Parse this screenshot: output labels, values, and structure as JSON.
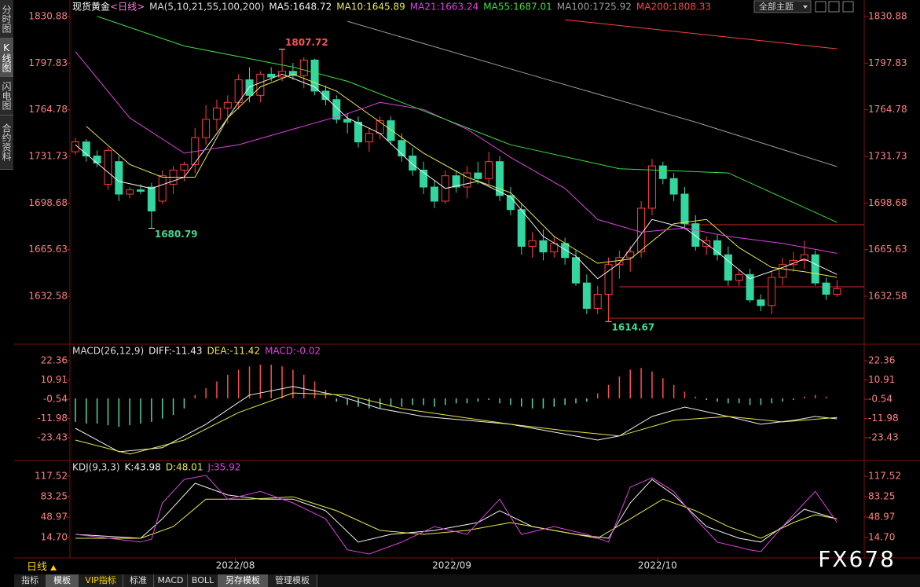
{
  "ui": {
    "sidebar": [
      "分时图",
      "K线图",
      "闪电图",
      "合约资料"
    ],
    "theme_button": "全部主题",
    "period": "日线",
    "tabs": [
      "指标",
      "模板",
      "VIP指标",
      "标准",
      "MACD",
      "BOLL",
      "另存模板",
      "管理模板"
    ],
    "watermark": "FX678"
  },
  "chart_data": [
    {
      "type": "candlestick",
      "title": "现货黄金",
      "period": "<日线>",
      "indicator": "MA(5,10,21,55,100,200)",
      "xlim": [
        -0.5,
        72.5
      ],
      "ylim": [
        1599.18,
        1830.88
      ],
      "yticks": [
        1830.88,
        1797.83,
        1764.78,
        1731.73,
        1698.68,
        1665.63,
        1632.58
      ],
      "up_color": "#ff3c3c",
      "down_color": "#33d6a0",
      "candles": [
        [
          1735,
          1745,
          1733,
          1742
        ],
        [
          1742,
          1744,
          1728,
          1732
        ],
        [
          1732,
          1736,
          1724,
          1727
        ],
        [
          1712,
          1738,
          1708,
          1736
        ],
        [
          1728,
          1732,
          1700,
          1705
        ],
        [
          1705,
          1710,
          1702,
          1708
        ],
        [
          1708,
          1712,
          1705,
          1707
        ],
        [
          1710,
          1713,
          1680.79,
          1693
        ],
        [
          1700,
          1722,
          1698,
          1718
        ],
        [
          1712,
          1725,
          1705,
          1722
        ],
        [
          1722,
          1728,
          1714,
          1726
        ],
        [
          1726,
          1752,
          1720,
          1745
        ],
        [
          1745,
          1768,
          1740,
          1758
        ],
        [
          1758,
          1772,
          1750,
          1766
        ],
        [
          1766,
          1775,
          1755,
          1770
        ],
        [
          1770,
          1790,
          1765,
          1786
        ],
        [
          1786,
          1795,
          1770,
          1775
        ],
        [
          1775,
          1792,
          1770,
          1790
        ],
        [
          1790,
          1795,
          1785,
          1788
        ],
        [
          1788,
          1807.72,
          1785,
          1792
        ],
        [
          1792,
          1798,
          1786,
          1789
        ],
        [
          1789,
          1802,
          1780,
          1800
        ],
        [
          1800,
          1801,
          1775,
          1778
        ],
        [
          1778,
          1782,
          1768,
          1772
        ],
        [
          1772,
          1775,
          1755,
          1758
        ],
        [
          1758,
          1762,
          1748,
          1756
        ],
        [
          1756,
          1760,
          1738,
          1742
        ],
        [
          1742,
          1752,
          1735,
          1748
        ],
        [
          1748,
          1760,
          1744,
          1757
        ],
        [
          1757,
          1760,
          1740,
          1743
        ],
        [
          1743,
          1748,
          1728,
          1732
        ],
        [
          1732,
          1738,
          1718,
          1722
        ],
        [
          1722,
          1728,
          1705,
          1710
        ],
        [
          1710,
          1715,
          1695,
          1700
        ],
        [
          1700,
          1722,
          1698,
          1718
        ],
        [
          1718,
          1722,
          1706,
          1710
        ],
        [
          1710,
          1725,
          1702,
          1720
        ],
        [
          1720,
          1728,
          1712,
          1716
        ],
        [
          1716,
          1735,
          1712,
          1728
        ],
        [
          1728,
          1732,
          1700,
          1704
        ],
        [
          1704,
          1710,
          1690,
          1694
        ],
        [
          1694,
          1698,
          1662,
          1668
        ],
        [
          1668,
          1678,
          1660,
          1672
        ],
        [
          1672,
          1680,
          1658,
          1664
        ],
        [
          1664,
          1675,
          1660,
          1670
        ],
        [
          1670,
          1674,
          1655,
          1660
        ],
        [
          1660,
          1665,
          1640,
          1642
        ],
        [
          1642,
          1648,
          1620,
          1624
        ],
        [
          1624,
          1640,
          1620,
          1634
        ],
        [
          1634,
          1660,
          1614.67,
          1655
        ],
        [
          1655,
          1665,
          1645,
          1660
        ],
        [
          1660,
          1668,
          1650,
          1664
        ],
        [
          1664,
          1700,
          1660,
          1695
        ],
        [
          1695,
          1730,
          1690,
          1725
        ],
        [
          1725,
          1728,
          1712,
          1716
        ],
        [
          1716,
          1720,
          1700,
          1705
        ],
        [
          1705,
          1710,
          1680,
          1684
        ],
        [
          1684,
          1690,
          1665,
          1668
        ],
        [
          1668,
          1675,
          1662,
          1672
        ],
        [
          1672,
          1676,
          1658,
          1662
        ],
        [
          1662,
          1668,
          1640,
          1644
        ],
        [
          1644,
          1652,
          1640,
          1648
        ],
        [
          1648,
          1652,
          1628,
          1630
        ],
        [
          1630,
          1634,
          1622,
          1626
        ],
        [
          1626,
          1650,
          1620,
          1646
        ],
        [
          1646,
          1660,
          1640,
          1655
        ],
        [
          1655,
          1664,
          1650,
          1658
        ],
        [
          1658,
          1672,
          1652,
          1662
        ],
        [
          1662,
          1665,
          1640,
          1642
        ],
        [
          1642,
          1646,
          1630,
          1634
        ],
        [
          1634,
          1644,
          1632,
          1638
        ]
      ],
      "marked_high": [
        19
      ],
      "marked_low": [
        7,
        49
      ],
      "series": [
        {
          "name": "MA5:1648.72",
          "color": "#f0f0f0",
          "x": [
            0,
            4,
            7,
            10,
            13,
            16,
            19,
            22,
            25,
            28,
            31,
            34,
            37,
            40,
            43,
            46,
            48,
            50,
            53,
            56,
            59,
            62,
            65,
            67,
            70
          ],
          "values": [
            1740,
            1714,
            1709,
            1717,
            1748,
            1781,
            1790,
            1781,
            1759,
            1748,
            1726,
            1709,
            1714,
            1703,
            1675,
            1661,
            1645,
            1656,
            1687,
            1681,
            1664,
            1645,
            1653,
            1659,
            1648
          ]
        },
        {
          "name": "MA10:1645.89",
          "color": "#e8e84a",
          "x": [
            1,
            5,
            8,
            11,
            14,
            17,
            20,
            24,
            28,
            32,
            36,
            40,
            44,
            48,
            51,
            55,
            58,
            61,
            64,
            67,
            70
          ],
          "values": [
            1753,
            1726,
            1717,
            1717,
            1759,
            1781,
            1790,
            1778,
            1756,
            1734,
            1717,
            1706,
            1675,
            1656,
            1659,
            1684,
            1687,
            1667,
            1653,
            1650,
            1646
          ]
        },
        {
          "name": "MA21:1663.24",
          "color": "#e040e0",
          "x": [
            0,
            5,
            10,
            15,
            20,
            25,
            28,
            32,
            36,
            40,
            45,
            48,
            52,
            56,
            60,
            65,
            70
          ],
          "values": [
            1806,
            1759,
            1734,
            1740,
            1751,
            1762,
            1770,
            1765,
            1751,
            1731,
            1709,
            1687,
            1678,
            1681,
            1675,
            1670,
            1663
          ]
        },
        {
          "name": "MA55:1687.01",
          "color": "#3fdc3f",
          "x": [
            2,
            10,
            20,
            25,
            30,
            40,
            50,
            60,
            70
          ],
          "values": [
            1831,
            1810,
            1795,
            1785,
            1770,
            1740,
            1723,
            1720,
            1685
          ]
        },
        {
          "name": "MA100:1725.92",
          "color": "#9a9a9a",
          "x": [
            25,
            43,
            57,
            70
          ],
          "values": [
            1827.5,
            1787,
            1756,
            1724.5
          ]
        },
        {
          "name": "MA200:1808.33",
          "color": "#ff4040",
          "x": [
            45,
            70
          ],
          "values": [
            1828.6,
            1808
          ]
        }
      ],
      "hlines": [
        {
          "y": 1683.3,
          "x": 56
        },
        {
          "y": 1639.3,
          "x": 50
        },
        {
          "y": 1617,
          "x": 49
        }
      ],
      "hline_color": "#d02828"
    },
    {
      "type": "macd",
      "indicator": "MACD(26,12,9)",
      "xlim": [
        -0.5,
        72.5
      ],
      "ylim": [
        -36.5,
        29.4
      ],
      "yticks": [
        22.36,
        10.91,
        -0.54,
        -11.98,
        -23.43
      ],
      "series": [
        {
          "name": "DIFF:-11.43",
          "color": "#f0f0f0",
          "x": [
            0,
            4,
            8,
            12,
            16,
            20,
            24,
            28,
            32,
            36,
            40,
            44,
            48,
            50,
            53,
            56,
            60,
            63,
            66,
            68,
            70
          ],
          "values": [
            -17.8,
            -31.8,
            -29.4,
            -15.4,
            1.9,
            7,
            1.9,
            -6.1,
            -10.8,
            -13.1,
            -15.4,
            -20.1,
            -24.8,
            -22.4,
            -10.8,
            -5.2,
            -10.8,
            -15.4,
            -13.1,
            -10.8,
            -12.2
          ]
        },
        {
          "name": "DEA:-11.42",
          "color": "#e8e84a",
          "x": [
            0,
            5,
            10,
            15,
            20,
            25,
            30,
            35,
            40,
            45,
            50,
            55,
            60,
            65,
            70
          ],
          "values": [
            -24.8,
            -33.2,
            -24.8,
            -8.4,
            3.2,
            1.9,
            -6.1,
            -10.8,
            -15.4,
            -19.2,
            -22.4,
            -13.1,
            -10.8,
            -14,
            -11.4
          ]
        }
      ],
      "histogram": {
        "name": "MACD:-0.02",
        "color": "#e040e0",
        "up_color": "#ff4d4d",
        "down_color": "#4fd6a0",
        "values": [
          -14,
          -15,
          -15,
          -16,
          -17,
          -16,
          -15,
          -14,
          -12,
          -10,
          -6,
          2,
          6,
          10,
          14,
          17,
          19,
          20,
          20,
          19,
          17,
          14,
          10,
          5,
          -2,
          -4,
          -5,
          -6,
          -6,
          -5,
          -5,
          -4,
          -4,
          -5,
          -4,
          -3,
          -3,
          -2,
          -1,
          -3,
          -4,
          -5,
          -6,
          -6,
          -5,
          -4,
          -3,
          -2,
          3,
          8,
          13,
          17,
          18,
          16,
          12,
          8,
          4,
          1,
          -1,
          -2,
          -3,
          -3,
          -4,
          -4,
          -3,
          -2,
          -1,
          1,
          2,
          1,
          -0.02
        ]
      }
    },
    {
      "type": "kdj",
      "indicator": "KDJ(9,3,3)",
      "xlim": [
        -0.5,
        72.5
      ],
      "ylim": [
        -14.3,
        136
      ],
      "yticks": [
        117.52,
        83.25,
        48.97,
        {
          "value": 14.7,
          "label": "14.70"
        }
      ],
      "xticks": [
        {
          "value": 14.7,
          "label": "2022/08"
        },
        {
          "value": 34.6,
          "label": "2022/09"
        },
        {
          "value": 53.5,
          "label": "2022/10"
        }
      ],
      "series": [
        {
          "name": "K:43.98",
          "color": "#f0f0f0",
          "x": [
            0,
            6,
            8,
            11,
            14,
            17,
            20,
            23,
            26,
            29,
            33,
            37,
            39,
            42,
            46,
            49,
            51,
            53,
            55,
            58,
            61,
            63,
            65,
            67,
            70
          ],
          "values": [
            20,
            13.4,
            46,
            105.7,
            86,
            79,
            79,
            59.6,
            7,
            20,
            26.6,
            39.8,
            59.6,
            33,
            20,
            13.4,
            72.7,
            112,
            86,
            33,
            13.4,
            7,
            33,
            62,
            46
          ]
        },
        {
          "name": "D:48.01",
          "color": "#e8e84a",
          "x": [
            0,
            6,
            9,
            12,
            16,
            20,
            24,
            28,
            32,
            36,
            40,
            44,
            48,
            51,
            54,
            57,
            60,
            63,
            66,
            68,
            70
          ],
          "values": [
            13.4,
            13.4,
            33,
            79,
            79,
            83,
            59.6,
            26.6,
            20,
            26.6,
            39.8,
            26.6,
            13.4,
            46,
            79,
            59.6,
            33,
            13.4,
            39.8,
            53,
            46
          ]
        },
        {
          "name": "J:35.92",
          "color": "#e040e0",
          "x": [
            0,
            6,
            7,
            8,
            10,
            12,
            14,
            17,
            20,
            23,
            25,
            27,
            30,
            33,
            36,
            39,
            41,
            44,
            47,
            49,
            51,
            53,
            55,
            57,
            59,
            62,
            63,
            65,
            67,
            68,
            70
          ],
          "values": [
            20,
            7,
            12,
            72.7,
            112,
            119,
            79,
            92,
            72.7,
            46,
            -6,
            -13,
            7,
            33,
            20,
            79,
            20,
            33,
            20,
            7,
            99,
            115,
            92,
            46,
            7,
            -6,
            -9,
            33,
            72.7,
            92,
            40
          ]
        }
      ]
    }
  ]
}
